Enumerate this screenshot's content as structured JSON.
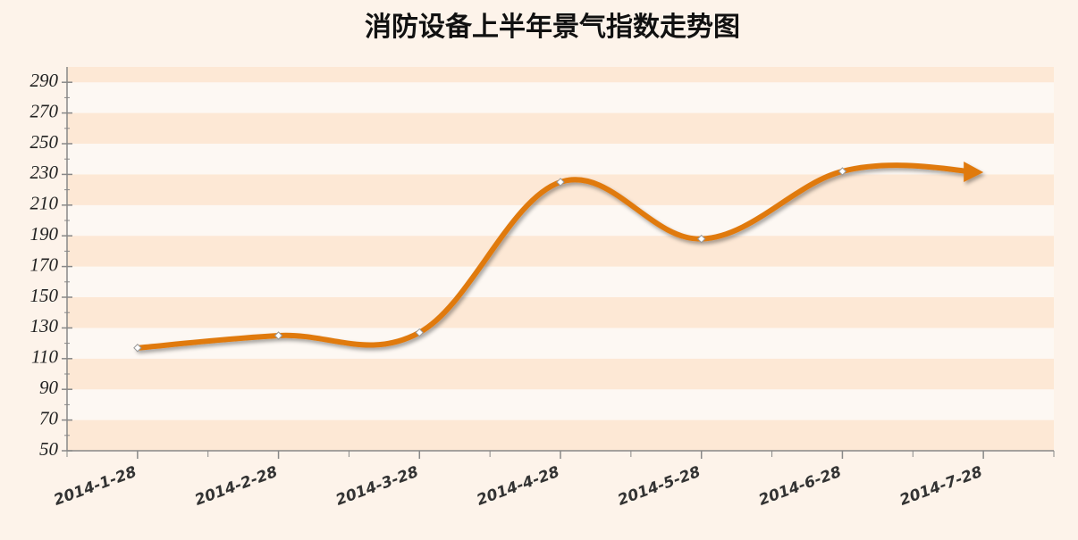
{
  "chart_data": {
    "type": "line",
    "title": "消防设备上半年景气指数走势图",
    "categories": [
      "2014-1-28",
      "2014-2-28",
      "2014-3-28",
      "2014-4-28",
      "2014-5-28",
      "2014-6-28",
      "2014-7-28"
    ],
    "series": [
      {
        "name": "景气指数",
        "color": "#e07a10",
        "values": [
          117,
          125,
          127,
          225,
          188,
          232,
          null
        ]
      }
    ],
    "ylim": [
      50,
      300
    ],
    "yticks": [
      50,
      70,
      90,
      110,
      130,
      150,
      170,
      190,
      210,
      230,
      250,
      270,
      290
    ],
    "bands": true
  }
}
